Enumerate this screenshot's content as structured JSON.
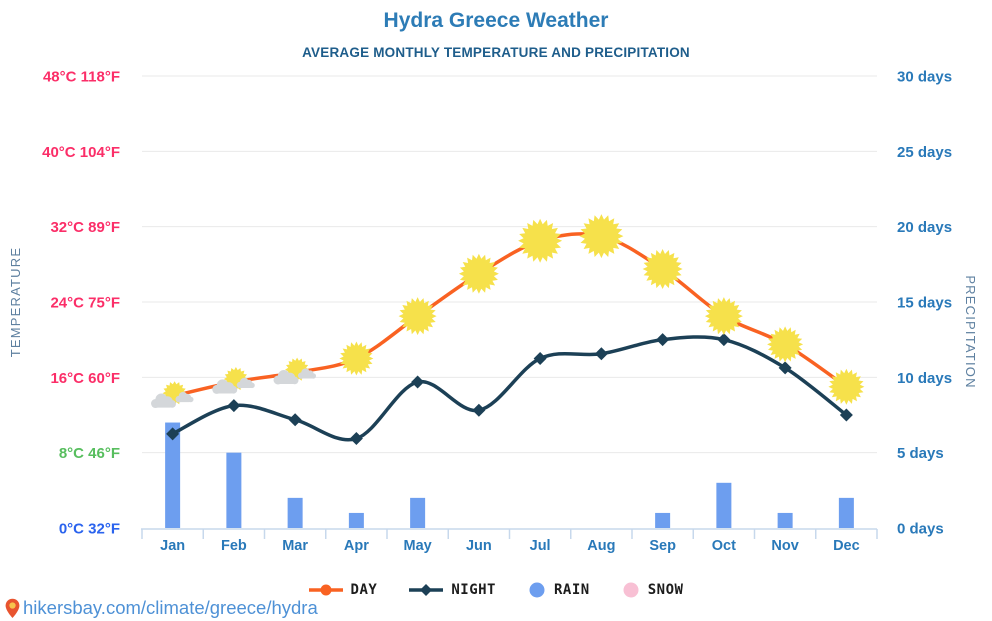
{
  "header": {
    "title": "Hydra Greece Weather",
    "subtitle": "AVERAGE MONTHLY TEMPERATURE AND PRECIPITATION"
  },
  "axes": {
    "left_title": "TEMPERATURE",
    "right_title": "PRECIPITATION",
    "left_ticks": [
      {
        "label": "48°C 118°F",
        "value_c": 48,
        "color": "#FB2E68"
      },
      {
        "label": "40°C 104°F",
        "value_c": 40,
        "color": "#FB2E68"
      },
      {
        "label": "32°C 89°F",
        "value_c": 32,
        "color": "#FB2E68"
      },
      {
        "label": "24°C 75°F",
        "value_c": 24,
        "color": "#FB2E68"
      },
      {
        "label": "16°C 60°F",
        "value_c": 16,
        "color": "#FB2E68"
      },
      {
        "label": "8°C 46°F",
        "value_c": 8,
        "color": "#57BE5E"
      },
      {
        "label": "0°C 32°F",
        "value_c": 0,
        "color": "#2A63EE"
      }
    ],
    "right_ticks": [
      {
        "label": "30 days",
        "value_days": 30
      },
      {
        "label": "25 days",
        "value_days": 25
      },
      {
        "label": "20 days",
        "value_days": 20
      },
      {
        "label": "15 days",
        "value_days": 15
      },
      {
        "label": "10 days",
        "value_days": 10
      },
      {
        "label": "5 days",
        "value_days": 5
      },
      {
        "label": "0 days",
        "value_days": 0
      }
    ]
  },
  "chart_data": {
    "type": "composite (line + bar)",
    "title": "Hydra Greece Weather",
    "subtitle": "AVERAGE MONTHLY TEMPERATURE AND PRECIPITATION",
    "categories": [
      "Jan",
      "Feb",
      "Mar",
      "Apr",
      "May",
      "Jun",
      "Jul",
      "Aug",
      "Sep",
      "Oct",
      "Nov",
      "Dec"
    ],
    "temp_axis": {
      "label": "TEMPERATURE",
      "unit": "°C",
      "min": 0,
      "max": 48,
      "step": 8
    },
    "precip_axis": {
      "label": "PRECIPITATION",
      "unit": "days",
      "min": 0,
      "max": 30,
      "step": 5
    },
    "grid": true,
    "legend_position": "bottom",
    "series": [
      {
        "name": "DAY",
        "type": "line",
        "unit": "°C",
        "color": "#F96222",
        "values": [
          14,
          15.5,
          16.5,
          18,
          22.5,
          27,
          30.5,
          31,
          27.5,
          22.5,
          19.5,
          15
        ],
        "point_icons": [
          "sun-cloud",
          "sun-cloud",
          "sun-cloud",
          "sun",
          "sun",
          "sun",
          "sun",
          "sun",
          "sun",
          "sun",
          "sun",
          "sun"
        ]
      },
      {
        "name": "NIGHT",
        "type": "line",
        "unit": "°C",
        "color": "#1C4056",
        "marker": "diamond",
        "values": [
          10,
          13,
          11.5,
          9.5,
          15.5,
          12.5,
          18,
          18.5,
          20,
          20,
          17,
          12
        ]
      },
      {
        "name": "RAIN",
        "type": "bar",
        "unit": "days",
        "color": "#6D9EEF",
        "values": [
          7,
          5,
          2,
          1,
          2,
          0,
          0,
          0,
          1,
          3,
          1,
          2
        ]
      },
      {
        "name": "SNOW",
        "type": "bar",
        "unit": "days",
        "color": "#F8C0D4",
        "values": [
          0,
          0,
          0,
          0,
          0,
          0,
          0,
          0,
          0,
          0,
          0,
          0
        ]
      }
    ]
  },
  "legend": [
    {
      "label": "DAY",
      "marker": "line-dot",
      "color": "#F96222"
    },
    {
      "label": "NIGHT",
      "marker": "line-diamond",
      "color": "#1C4056"
    },
    {
      "label": "RAIN",
      "marker": "circle",
      "color": "#6D9EEF"
    },
    {
      "label": "SNOW",
      "marker": "circle",
      "color": "#F8C0D4"
    }
  ],
  "footer": {
    "url": "hikersbay.com/climate/greece/hydra"
  },
  "colors": {
    "title": "#2D7CB6",
    "subtitle": "#1E5D8B",
    "axis_blue": "#2979B9",
    "axis_title": "#5E80A0",
    "gridline": "#EAEAEA",
    "axis_line": "#C7D8EC",
    "sun": "#F6E14B",
    "cloud": "#D4D7DA",
    "url": "#4E91D6",
    "pin_body": "#E8542F",
    "pin_center": "#F6C44D"
  }
}
